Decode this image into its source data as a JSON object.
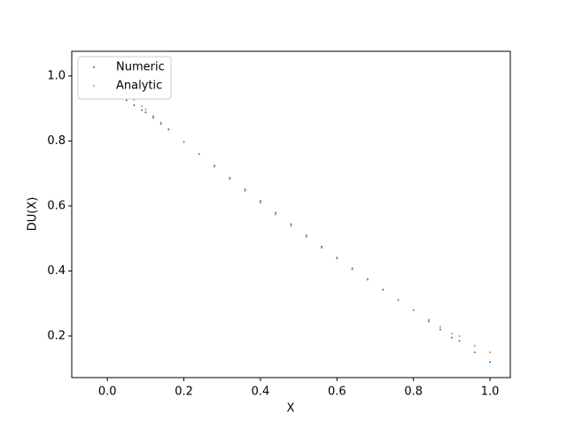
{
  "chart_data": {
    "type": "scatter",
    "xlabel": "X",
    "ylabel": "DU(X)",
    "x": [
      0.05,
      0.07,
      0.09,
      0.1,
      0.12,
      0.14,
      0.16,
      0.2,
      0.24,
      0.28,
      0.32,
      0.36,
      0.4,
      0.44,
      0.48,
      0.52,
      0.56,
      0.6,
      0.64,
      0.68,
      0.72,
      0.76,
      0.8,
      0.84,
      0.87,
      0.9,
      0.92,
      0.96,
      1.0
    ],
    "series": [
      {
        "name": "Numeric",
        "color": "#1f77b4",
        "values": [
          0.925,
          0.91,
          0.895,
          0.888,
          0.872,
          0.853,
          0.835,
          0.797,
          0.76,
          0.724,
          0.687,
          0.651,
          0.615,
          0.579,
          0.544,
          0.509,
          0.475,
          0.441,
          0.408,
          0.375,
          0.343,
          0.311,
          0.279,
          0.245,
          0.22,
          0.195,
          0.185,
          0.15,
          0.12
        ]
      },
      {
        "name": "Analytic",
        "color": "#ff7f0e",
        "values": [
          0.948,
          0.927,
          0.907,
          0.897,
          0.877,
          0.857,
          0.837,
          0.798,
          0.759,
          0.721,
          0.683,
          0.646,
          0.61,
          0.574,
          0.539,
          0.505,
          0.471,
          0.438,
          0.405,
          0.373,
          0.341,
          0.31,
          0.28,
          0.25,
          0.228,
          0.207,
          0.2,
          0.17,
          0.15
        ]
      }
    ],
    "xlim": [
      -0.093,
      1.053
    ],
    "ylim": [
      0.072,
      1.076
    ],
    "xticks": [
      {
        "value": 0,
        "label": "0.0"
      },
      0.2,
      0.4,
      0.6,
      0.8,
      {
        "value": 1,
        "label": "1.0"
      }
    ],
    "yticks": [
      0.2,
      0.4,
      0.6,
      0.8,
      {
        "value": 1,
        "label": "1.0"
      }
    ],
    "legend": "upper left"
  }
}
